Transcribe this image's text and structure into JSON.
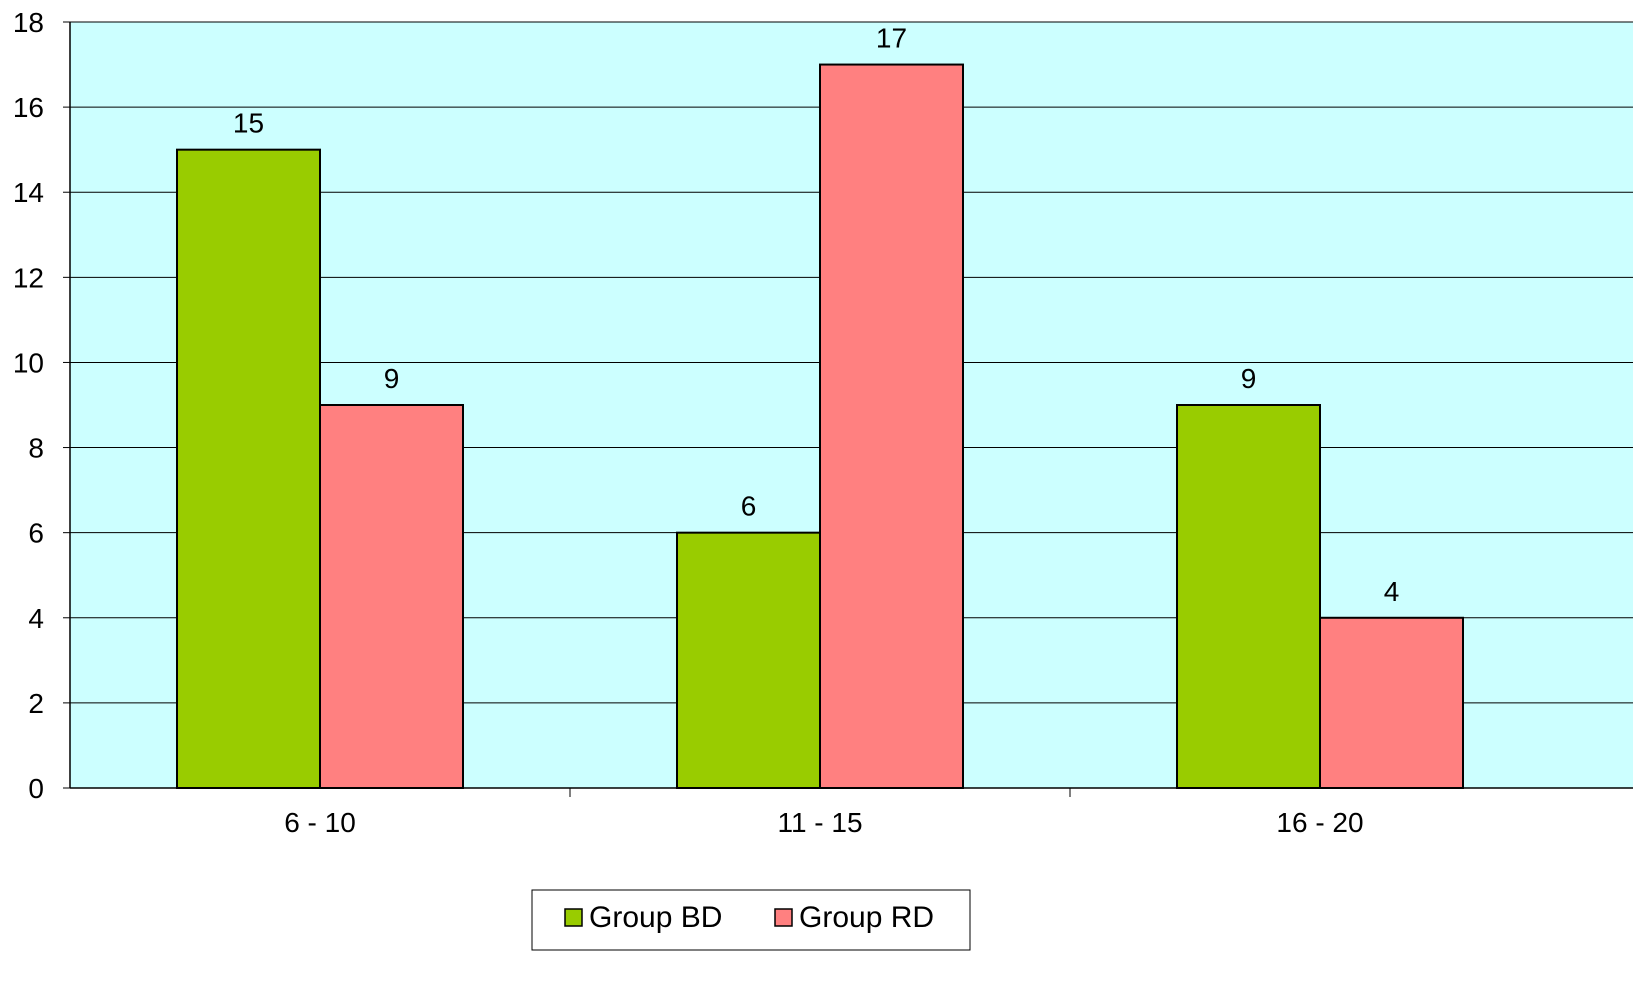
{
  "chart_data": {
    "type": "bar",
    "categories": [
      "6 - 10",
      "11 - 15",
      "16 - 20"
    ],
    "series": [
      {
        "name": "Group BD",
        "color": "#99cc00",
        "values": [
          15,
          6,
          9
        ]
      },
      {
        "name": "Group RD",
        "color": "#ff8080",
        "values": [
          9,
          17,
          4
        ]
      }
    ],
    "ylim": [
      0,
      18
    ],
    "yticks": [
      0,
      2,
      4,
      6,
      8,
      10,
      12,
      14,
      16,
      18
    ],
    "plot_background": "#ccffff",
    "grid": true,
    "legend": "bottom-center",
    "data_labels": true
  }
}
